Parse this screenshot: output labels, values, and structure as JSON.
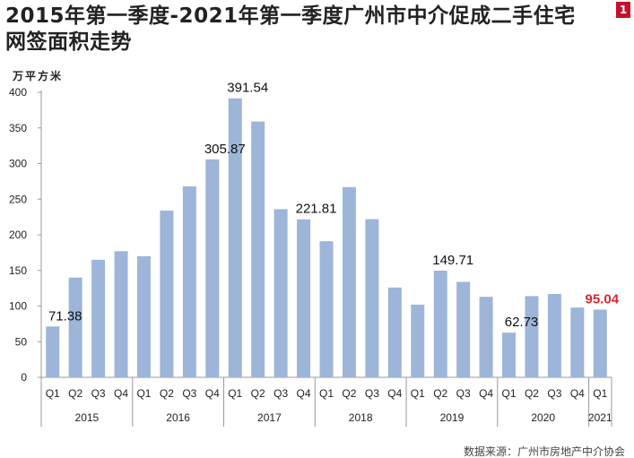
{
  "badge": "1",
  "chart_data": {
    "type": "bar",
    "title": "2015年第一季度-2021年第一季度广州市中介促成二手住宅网签面积走势",
    "title_lines": [
      "2015年第一季度-2021年第一季度广州市中介促成二手住宅",
      "网签面积走势"
    ],
    "ylabel": "万平方米",
    "ylim": [
      0,
      400
    ],
    "yticks": [
      0,
      50,
      100,
      150,
      200,
      250,
      300,
      350,
      400
    ],
    "groups": [
      {
        "year": "2015",
        "quarters": [
          "Q1",
          "Q2",
          "Q3",
          "Q4"
        ]
      },
      {
        "year": "2016",
        "quarters": [
          "Q1",
          "Q2",
          "Q3",
          "Q4"
        ]
      },
      {
        "year": "2017",
        "quarters": [
          "Q1",
          "Q2",
          "Q3",
          "Q4"
        ]
      },
      {
        "year": "2018",
        "quarters": [
          "Q1",
          "Q2",
          "Q3",
          "Q4"
        ]
      },
      {
        "year": "2019",
        "quarters": [
          "Q1",
          "Q2",
          "Q3",
          "Q4"
        ]
      },
      {
        "year": "2020",
        "quarters": [
          "Q1",
          "Q2",
          "Q3",
          "Q4"
        ]
      },
      {
        "year": "2021",
        "quarters": [
          "Q1"
        ]
      }
    ],
    "values": [
      71.38,
      140,
      165,
      177,
      170,
      234,
      268,
      305.87,
      391.54,
      359,
      236,
      221.81,
      191,
      267,
      222,
      126,
      102,
      149.71,
      134,
      113,
      62.73,
      114,
      117,
      98,
      95.04
    ],
    "data_labels": [
      {
        "index": 0,
        "text": "71.38"
      },
      {
        "index": 7,
        "text": "305.87"
      },
      {
        "index": 8,
        "text": "391.54"
      },
      {
        "index": 11,
        "text": "221.81"
      },
      {
        "index": 17,
        "text": "149.71"
      },
      {
        "index": 20,
        "text": "62.73"
      },
      {
        "index": 24,
        "text": "95.04",
        "highlight": true
      }
    ],
    "colors": {
      "bar": "#9db5d8",
      "highlight": "#d9262c",
      "axis": "#999999"
    },
    "grid": false,
    "source": "数据来源：广州市房地产中介协会"
  }
}
